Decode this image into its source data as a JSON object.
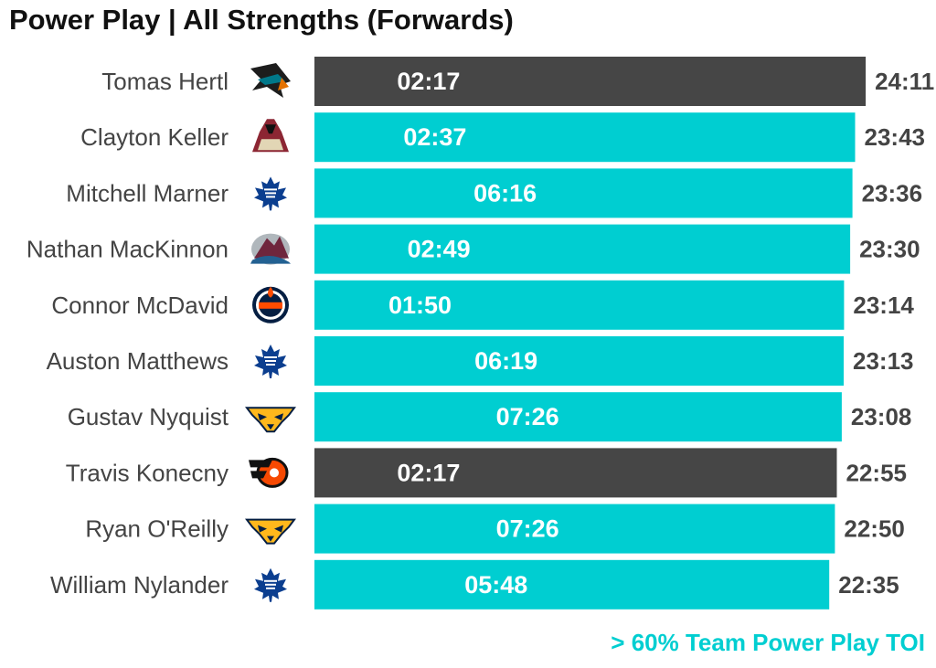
{
  "title": "Power Play | All Strengths (Forwards)",
  "footnote": "> 60% Team Power Play TOI",
  "colors": {
    "highlight": "#00CED1",
    "other": "#464646",
    "label": "#444444",
    "bar_text": "#ffffff"
  },
  "chart_data": {
    "type": "bar",
    "orientation": "horizontal",
    "unit": "minutes:seconds",
    "xlim": [
      0,
      24.7
    ],
    "grid": false,
    "rows": [
      {
        "player": "Tomas Hertl",
        "team_logo": "sharks-logo-icon",
        "total_toi": "24:11",
        "total_minutes": 24.183,
        "pp_toi": "02:17",
        "highlight": false
      },
      {
        "player": "Clayton Keller",
        "team_logo": "coyotes-logo-icon",
        "total_toi": "23:43",
        "total_minutes": 23.717,
        "pp_toi": "02:37",
        "highlight": true
      },
      {
        "player": "Mitchell Marner",
        "team_logo": "maple-leafs-logo-icon",
        "total_toi": "23:36",
        "total_minutes": 23.6,
        "pp_toi": "06:16",
        "highlight": true
      },
      {
        "player": "Nathan MacKinnon",
        "team_logo": "avalanche-logo-icon",
        "total_toi": "23:30",
        "total_minutes": 23.5,
        "pp_toi": "02:49",
        "highlight": true
      },
      {
        "player": "Connor McDavid",
        "team_logo": "oilers-logo-icon",
        "total_toi": "23:14",
        "total_minutes": 23.233,
        "pp_toi": "01:50",
        "highlight": true
      },
      {
        "player": "Auston Matthews",
        "team_logo": "maple-leafs-logo-icon",
        "total_toi": "23:13",
        "total_minutes": 23.217,
        "pp_toi": "06:19",
        "highlight": true
      },
      {
        "player": "Gustav Nyquist",
        "team_logo": "predators-logo-icon",
        "total_toi": "23:08",
        "total_minutes": 23.133,
        "pp_toi": "07:26",
        "highlight": true
      },
      {
        "player": "Travis Konecny",
        "team_logo": "flyers-logo-icon",
        "total_toi": "22:55",
        "total_minutes": 22.917,
        "pp_toi": "02:17",
        "highlight": false
      },
      {
        "player": "Ryan O'Reilly",
        "team_logo": "predators-logo-icon",
        "total_toi": "22:50",
        "total_minutes": 22.833,
        "pp_toi": "07:26",
        "highlight": true
      },
      {
        "player": "William Nylander",
        "team_logo": "maple-leafs-logo-icon",
        "total_toi": "22:35",
        "total_minutes": 22.583,
        "pp_toi": "05:48",
        "highlight": true
      }
    ]
  }
}
